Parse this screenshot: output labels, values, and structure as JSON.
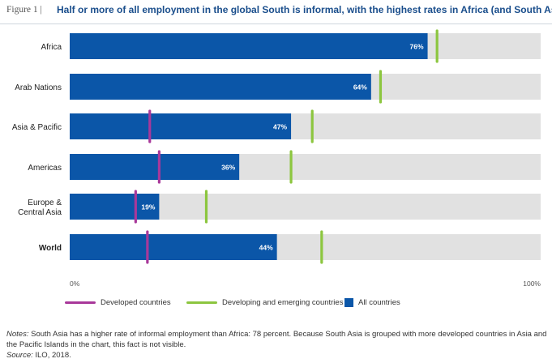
{
  "header": {
    "figure_label": "Figure 1 |",
    "title": "Half or more of all employment in the global South is informal, with the highest rates in Africa (and South Asia)"
  },
  "chart_data": {
    "type": "bar",
    "orientation": "horizontal",
    "categories": [
      "Africa",
      "Arab Nations",
      "Asia & Pacific",
      "Americas",
      "Europe & Central Asia",
      "World"
    ],
    "category_lines": [
      [
        "Africa"
      ],
      [
        "Arab Nations"
      ],
      [
        "Asia & Pacific"
      ],
      [
        "Americas"
      ],
      [
        "Europe &",
        "Central Asia"
      ],
      [
        "World"
      ]
    ],
    "bold_categories": [
      "World"
    ],
    "series": [
      {
        "name": "All countries",
        "values": [
          76,
          64,
          47,
          36,
          19,
          44
        ],
        "color": "#0b56a8",
        "labels": [
          "76%",
          "64%",
          "47%",
          "36%",
          "19%",
          "44%"
        ]
      },
      {
        "name": "Developed countries",
        "values": [
          null,
          null,
          17,
          19,
          14,
          16.5
        ],
        "color": "#a8389a"
      },
      {
        "name": "Developing and emerging countries",
        "values": [
          78,
          66,
          51.5,
          47,
          29,
          53.5
        ],
        "color": "#8cc63f"
      }
    ],
    "xlim": [
      0,
      100
    ],
    "x_tick_labels": [
      "0%",
      "100%"
    ],
    "background_bar_color": "#e1e1e1",
    "legend_position": "bottom"
  },
  "legend": {
    "developed": "Developed countries",
    "developing": "Developing and emerging countries",
    "all": "All countries"
  },
  "notes": {
    "notes_label": "Notes:",
    "notes_text": " South Asia has a higher rate of informal employment than Africa: 78 percent. Because South Asia is grouped with more developed countries in Asia and the Pacific Islands in the chart, this fact is not visible.",
    "source_label": "Source:",
    "source_text": " ILO, 2018."
  }
}
